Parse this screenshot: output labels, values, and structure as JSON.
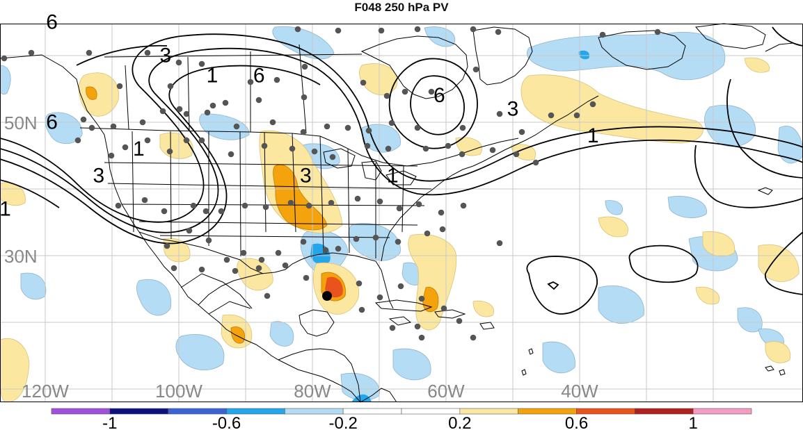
{
  "title": "F048 250 hPa PV",
  "map": {
    "lat_labels": [
      {
        "text": "50N",
        "lat": 50
      },
      {
        "text": "30N",
        "lat": 30
      }
    ],
    "lon_labels": [
      {
        "text": "120W",
        "lon": -120
      },
      {
        "text": "100W",
        "lon": -100
      },
      {
        "text": "80W",
        "lon": -80
      },
      {
        "text": "60W",
        "lon": -60
      },
      {
        "text": "40W",
        "lon": -40
      }
    ],
    "contour_labels": [
      {
        "text": "6",
        "lon": -119,
        "lat": 64
      },
      {
        "text": "3",
        "lon": -102,
        "lat": 59
      },
      {
        "text": "1",
        "lon": -95,
        "lat": 56
      },
      {
        "text": "6",
        "lon": -88,
        "lat": 56
      },
      {
        "text": "6",
        "lon": -61,
        "lat": 53
      },
      {
        "text": "3",
        "lon": -50,
        "lat": 51
      },
      {
        "text": "1",
        "lon": -38,
        "lat": 47
      },
      {
        "text": "6",
        "lon": -119,
        "lat": 49
      },
      {
        "text": "1",
        "lon": -106,
        "lat": 45
      },
      {
        "text": "3",
        "lon": -112,
        "lat": 41
      },
      {
        "text": "3",
        "lon": -81,
        "lat": 41
      },
      {
        "text": "1",
        "lon": -68,
        "lat": 41
      },
      {
        "text": "1",
        "lon": -126,
        "lat": 36
      }
    ],
    "grid_color": "#c8c8c8",
    "storm_center_color": "#000000"
  },
  "colorbar": {
    "colors": [
      "#a14fdc",
      "#0d117e",
      "#3a63d4",
      "#24a6ea",
      "#b4dcf5",
      "#ffffff",
      "#ffffff",
      "#fbe7a0",
      "#f4a30c",
      "#e9541c",
      "#b21f1f",
      "#f59cc4"
    ],
    "tick_labels": [
      "-1",
      "-0.6",
      "-0.2",
      "0.2",
      "0.6",
      "1"
    ],
    "range": [
      -1.2,
      1.2
    ]
  }
}
